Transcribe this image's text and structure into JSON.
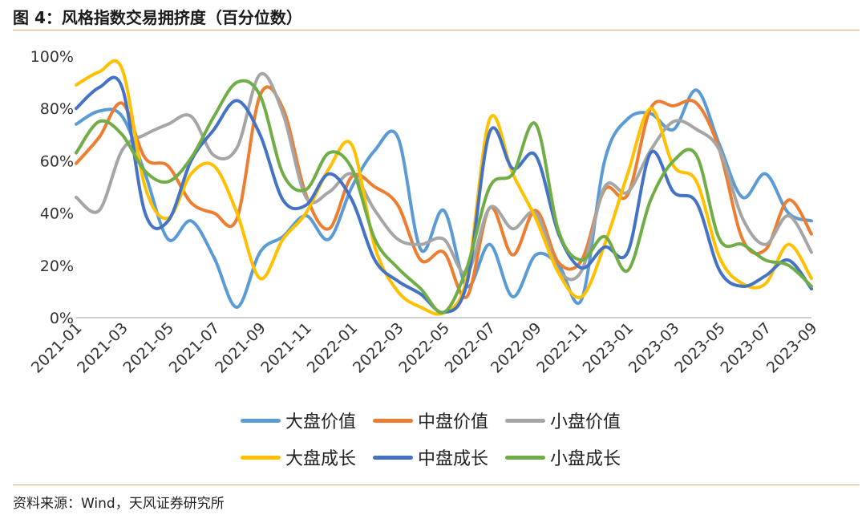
{
  "header": {
    "title": "图 4：风格指数交易拥挤度（百分位数）"
  },
  "footer": {
    "source": "资料来源：Wind，天风证券研究所"
  },
  "chart_data": {
    "type": "line",
    "title": "风格指数交易拥挤度（百分位数）",
    "xlabel": "",
    "ylabel": "",
    "ylim": [
      0,
      100
    ],
    "y_ticks": [
      "0%",
      "20%",
      "40%",
      "60%",
      "80%",
      "100%"
    ],
    "y_tick_values": [
      0,
      20,
      40,
      60,
      80,
      100
    ],
    "x_ticks": [
      "2021-01",
      "2021-03",
      "2021-05",
      "2021-07",
      "2021-09",
      "2021-11",
      "2022-01",
      "2022-03",
      "2022-05",
      "2022-07",
      "2022-09",
      "2022-11",
      "2023-01",
      "2023-03",
      "2023-05",
      "2023-07",
      "2023-09"
    ],
    "x": [
      "2021-01",
      "2021-02",
      "2021-03",
      "2021-04",
      "2021-05",
      "2021-06",
      "2021-07",
      "2021-08",
      "2021-09",
      "2021-10",
      "2021-11",
      "2021-12",
      "2022-01",
      "2022-02",
      "2022-03",
      "2022-04",
      "2022-05",
      "2022-06",
      "2022-07",
      "2022-08",
      "2022-09",
      "2022-10",
      "2022-11",
      "2022-12",
      "2023-01",
      "2023-02",
      "2023-03",
      "2023-04",
      "2023-05",
      "2023-06",
      "2023-07",
      "2023-08",
      "2023-09"
    ],
    "grid": false,
    "legend_position": "bottom",
    "series": [
      {
        "name": "大盘价值",
        "color": "#5b9bd5",
        "values": [
          74,
          79,
          77,
          55,
          30,
          37,
          23,
          4,
          25,
          31,
          39,
          30,
          50,
          64,
          69,
          26,
          41,
          12,
          28,
          8,
          24,
          20,
          7,
          60,
          76,
          78,
          72,
          87,
          66,
          46,
          55,
          40,
          37
        ]
      },
      {
        "name": "中盘价值",
        "color": "#ed7d31",
        "values": [
          59,
          69,
          82,
          61,
          58,
          44,
          40,
          38,
          85,
          80,
          47,
          34,
          54,
          50,
          43,
          22,
          25,
          8,
          42,
          24,
          41,
          21,
          22,
          49,
          47,
          80,
          81,
          82,
          64,
          30,
          26,
          45,
          32
        ]
      },
      {
        "name": "小盘价值",
        "color": "#a5a5a5",
        "values": [
          46,
          41,
          64,
          70,
          74,
          77,
          62,
          65,
          93,
          78,
          46,
          48,
          55,
          41,
          30,
          28,
          30,
          17,
          42,
          34,
          40,
          18,
          18,
          50,
          48,
          64,
          75,
          72,
          64,
          38,
          28,
          39,
          25
        ]
      },
      {
        "name": "大盘成长",
        "color": "#ffc000",
        "values": [
          89,
          94,
          95,
          50,
          38,
          55,
          58,
          40,
          15,
          30,
          40,
          57,
          66,
          27,
          10,
          4,
          2,
          15,
          76,
          55,
          38,
          17,
          8,
          28,
          55,
          80,
          58,
          52,
          23,
          13,
          13,
          28,
          15
        ]
      },
      {
        "name": "中盘成长",
        "color": "#4472c4",
        "values": [
          80,
          88,
          88,
          40,
          37,
          60,
          72,
          83,
          70,
          45,
          43,
          55,
          45,
          22,
          14,
          9,
          2,
          13,
          71,
          57,
          62,
          32,
          19,
          27,
          25,
          63,
          48,
          44,
          18,
          12,
          16,
          22,
          11
        ]
      },
      {
        "name": "小盘成长",
        "color": "#70ad47",
        "values": [
          63,
          75,
          70,
          56,
          52,
          61,
          77,
          90,
          85,
          55,
          49,
          63,
          57,
          30,
          19,
          11,
          2,
          19,
          50,
          55,
          74,
          33,
          22,
          31,
          18,
          45,
          60,
          62,
          30,
          28,
          22,
          20,
          12
        ]
      }
    ]
  }
}
